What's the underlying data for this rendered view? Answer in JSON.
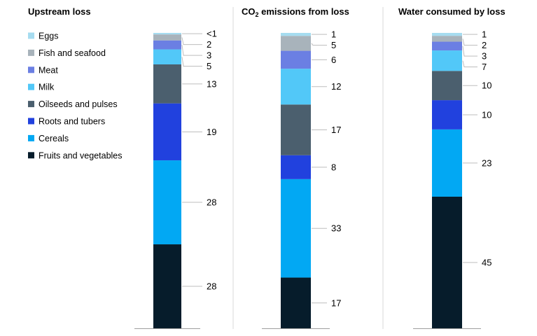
{
  "colors": {
    "Eggs": "#a6dcf0",
    "Fish and seafood": "#a8b3bb",
    "Meat": "#6b7fe3",
    "Milk": "#52c8f8",
    "Oilseeds and pulses": "#4b5f6e",
    "Roots and tubers": "#2141de",
    "Cereals": "#02a8f3",
    "Fruits and vegetables": "#061c2b"
  },
  "chart_data": {
    "type": "bar",
    "stacked": true,
    "normalized_percent": true,
    "legend": {
      "position": "top-left",
      "entries": [
        "Eggs",
        "Fish and seafood",
        "Meat",
        "Milk",
        "Oilseeds and pulses",
        "Roots and tubers",
        "Cereals",
        "Fruits and vegetables"
      ]
    },
    "panels": [
      {
        "title": "Upstream loss",
        "title_sub": "",
        "title_rest": "",
        "segments": [
          {
            "category": "Fruits and vegetables",
            "value": 28,
            "label": "28"
          },
          {
            "category": "Cereals",
            "value": 28,
            "label": "28"
          },
          {
            "category": "Roots and tubers",
            "value": 19,
            "label": "19"
          },
          {
            "category": "Oilseeds and pulses",
            "value": 13,
            "label": "13"
          },
          {
            "category": "Milk",
            "value": 5,
            "label": "5"
          },
          {
            "category": "Meat",
            "value": 3,
            "label": "3"
          },
          {
            "category": "Fish and seafood",
            "value": 2,
            "label": "2"
          },
          {
            "category": "Eggs",
            "value": 0.5,
            "label": "<1"
          }
        ]
      },
      {
        "title": "CO",
        "title_sub": "2",
        "title_rest": " emissions from loss",
        "segments": [
          {
            "category": "Fruits and vegetables",
            "value": 17,
            "label": "17"
          },
          {
            "category": "Cereals",
            "value": 33,
            "label": "33"
          },
          {
            "category": "Roots and tubers",
            "value": 8,
            "label": "8"
          },
          {
            "category": "Oilseeds and pulses",
            "value": 17,
            "label": "17"
          },
          {
            "category": "Milk",
            "value": 12,
            "label": "12"
          },
          {
            "category": "Meat",
            "value": 6,
            "label": "6"
          },
          {
            "category": "Fish and seafood",
            "value": 5,
            "label": "5"
          },
          {
            "category": "Eggs",
            "value": 1,
            "label": "1"
          }
        ]
      },
      {
        "title": "Water consumed by loss",
        "title_sub": "",
        "title_rest": "",
        "segments": [
          {
            "category": "Fruits and vegetables",
            "value": 45,
            "label": "45"
          },
          {
            "category": "Cereals",
            "value": 23,
            "label": "23"
          },
          {
            "category": "Roots and tubers",
            "value": 10,
            "label": "10"
          },
          {
            "category": "Oilseeds and pulses",
            "value": 10,
            "label": "10"
          },
          {
            "category": "Milk",
            "value": 7,
            "label": "7"
          },
          {
            "category": "Meat",
            "value": 3,
            "label": "3"
          },
          {
            "category": "Fish and seafood",
            "value": 2,
            "label": "2"
          },
          {
            "category": "Eggs",
            "value": 1,
            "label": "1"
          }
        ]
      }
    ]
  }
}
